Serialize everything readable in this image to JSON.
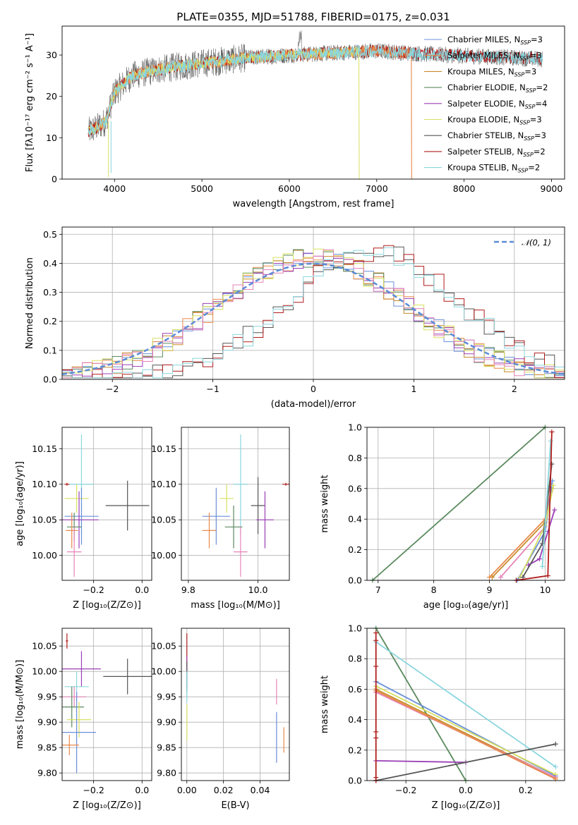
{
  "title": "PLATE=0355, MJD=51788, FIBERID=0175, z=0.031",
  "colors": {
    "chabrier_miles": "#6a8fd8",
    "salpeter_miles": "#e8894a",
    "kroupa_miles": "#c98a2c",
    "chabrier_elodie": "#5a8a5e",
    "salpeter_elodie": "#9b3fb6",
    "kroupa_elodie": "#d8e060",
    "chabrier_stelib": "#555555",
    "salpeter_stelib": "#b01c1c",
    "kroupa_stelib": "#8ad6de",
    "pink": "#e684b8",
    "gauss": "#5b8bd8"
  },
  "chart_data": [
    {
      "type": "line",
      "name": "spectrum",
      "xlabel": "wavelength [Angstrom, rest frame]",
      "ylabel": "Flux [fλ10⁻¹⁷ erg cm⁻² s⁻¹ A⁻¹]",
      "xlim": [
        3400,
        9150
      ],
      "ylim": [
        0,
        37
      ],
      "xticks": [
        "4000",
        "5000",
        "6000",
        "7000",
        "8000",
        "9000"
      ],
      "yticks": [
        "0",
        "10",
        "20",
        "30"
      ],
      "legend_position": "top-right",
      "legend": [
        "Chabrier MILES, NSSP=3",
        "Salpeter MILES, NSSP=3",
        "Kroupa MILES, NSSP=3",
        "Chabrier ELODIE, NSSP=2",
        "Salpeter ELODIE, NSSP=4",
        "Kroupa ELODIE, NSSP=3",
        "Chabrier STELIB, NSSP=3",
        "Salpeter STELIB, NSSP=2",
        "Kroupa STELIB, NSSP=2"
      ],
      "continuum": {
        "x": [
          3700,
          3800,
          3900,
          4000,
          4200,
          4500,
          5000,
          5500,
          6000,
          6500,
          7000,
          7500,
          8000,
          8500,
          8900
        ],
        "y": [
          11.5,
          12.5,
          14,
          21,
          25,
          26.5,
          28,
          29.3,
          30,
          30.5,
          31,
          30.3,
          29.8,
          29.4,
          29
        ]
      },
      "model_end": {
        "miles": 7400,
        "elodie": 6800,
        "stelib": 8900
      }
    },
    {
      "type": "line",
      "name": "residual-histogram",
      "xlabel": "(data-model)/error",
      "ylabel": "Normed distribution",
      "xlim": [
        -2.5,
        2.5
      ],
      "ylim": [
        0,
        0.525
      ],
      "xticks": [
        "−2",
        "−1",
        "0",
        "1",
        "2"
      ],
      "yticks": [
        "0.0",
        "0.1",
        "0.2",
        "0.3",
        "0.4",
        "0.5"
      ],
      "legend": [
        "𝒩(0, 1)"
      ],
      "legend_position": "top-right",
      "bin_width": 0.1,
      "centred_groups": [
        "chabrier_miles",
        "salpeter_miles",
        "kroupa_miles",
        "chabrier_elodie",
        "salpeter_elodie",
        "kroupa_elodie",
        "pink"
      ],
      "shifted_groups": [
        "chabrier_stelib",
        "salpeter_stelib",
        "kroupa_stelib"
      ],
      "centred_peak": 0.45,
      "shifted_center": 0.6,
      "shifted_peak": 0.46
    },
    {
      "type": "scatter",
      "name": "age-vs-Z",
      "xlabel": "Z [log₁₀(Z/Z⊙)]",
      "ylabel": "age  [log₁₀(age/yr)]",
      "xlim": [
        -0.33,
        0.04
      ],
      "ylim": [
        9.965,
        10.18
      ],
      "xticks": [
        "−0.2",
        "0.0"
      ],
      "yticks": [
        "10.00",
        "10.05",
        "10.10",
        "10.15"
      ],
      "points": [
        {
          "c": "kroupa_stelib",
          "x": -0.25,
          "y": 10.1,
          "xe": 0.05,
          "ye": 0.07
        },
        {
          "c": "chabrier_stelib",
          "x": -0.06,
          "y": 10.07,
          "xe": 0.09,
          "ye": 0.035
        },
        {
          "c": "kroupa_elodie",
          "x": -0.27,
          "y": 10.08,
          "xe": 0.05,
          "ye": 0.02
        },
        {
          "c": "chabrier_miles",
          "x": -0.25,
          "y": 10.055,
          "xe": 0.07,
          "ye": 0.04
        },
        {
          "c": "salpeter_elodie",
          "x": -0.26,
          "y": 10.05,
          "xe": 0.08,
          "ye": 0.04
        },
        {
          "c": "chabrier_elodie",
          "x": -0.28,
          "y": 10.04,
          "xe": 0.03,
          "ye": 0.02
        },
        {
          "c": "salpeter_miles",
          "x": -0.29,
          "y": 10.035,
          "xe": 0.025,
          "ye": 0.025
        },
        {
          "c": "pink",
          "x": -0.28,
          "y": 10.005,
          "xe": 0.03,
          "ye": 0.035
        },
        {
          "c": "salpeter_stelib",
          "x": -0.31,
          "y": 10.1,
          "xe": 0.01,
          "ye": 0.002
        }
      ]
    },
    {
      "type": "scatter",
      "name": "age-vs-mass",
      "xlabel": "mass [log₁₀(M/M⊙)]",
      "ylabel": "",
      "xlim": [
        9.78,
        10.09
      ],
      "ylim": [
        9.965,
        10.18
      ],
      "xticks": [
        "9.8",
        "10.0"
      ],
      "yticks": [
        "10.00",
        "10.05",
        "10.10",
        "10.15"
      ],
      "points": [
        {
          "c": "kroupa_stelib",
          "x": 9.95,
          "y": 10.1,
          "xe": 0.02,
          "ye": 0.07
        },
        {
          "c": "chabrier_stelib",
          "x": 10.0,
          "y": 10.07,
          "xe": 0.02,
          "ye": 0.04
        },
        {
          "c": "kroupa_elodie",
          "x": 9.91,
          "y": 10.08,
          "xe": 0.02,
          "ye": 0.02
        },
        {
          "c": "chabrier_miles",
          "x": 9.88,
          "y": 10.055,
          "xe": 0.04,
          "ye": 0.04
        },
        {
          "c": "chabrier_elodie",
          "x": 9.93,
          "y": 10.04,
          "xe": 0.025,
          "ye": 0.03
        },
        {
          "c": "salpeter_elodie",
          "x": 10.02,
          "y": 10.05,
          "xe": 0.025,
          "ye": 0.04
        },
        {
          "c": "salpeter_miles",
          "x": 9.86,
          "y": 10.035,
          "xe": 0.02,
          "ye": 0.025
        },
        {
          "c": "pink",
          "x": 9.95,
          "y": 10.005,
          "xe": 0.02,
          "ye": 0.035
        },
        {
          "c": "salpeter_stelib",
          "x": 10.08,
          "y": 10.1,
          "xe": 0.01,
          "ye": 0.002
        }
      ]
    },
    {
      "type": "line",
      "name": "mass-weight-vs-age",
      "xlabel": "age  [log₁₀(age/yr)]",
      "ylabel": "mass weight",
      "xlim": [
        6.8,
        10.35
      ],
      "ylim": [
        0,
        1
      ],
      "xticks": [
        "7",
        "8",
        "9",
        "10"
      ],
      "yticks": [
        "0.0",
        "0.2",
        "0.4",
        "0.6",
        "0.8",
        "1.0"
      ],
      "series": [
        {
          "c": "chabrier_elodie",
          "x": [
            6.9,
            10.0
          ],
          "y": [
            0.0,
            1.0
          ]
        },
        {
          "c": "salpeter_miles",
          "x": [
            9.0,
            10.0,
            10.1
          ],
          "y": [
            0.02,
            0.4,
            0.58
          ]
        },
        {
          "c": "kroupa_miles",
          "x": [
            9.05,
            10.0,
            10.12
          ],
          "y": [
            0.02,
            0.38,
            0.6
          ]
        },
        {
          "c": "pink",
          "x": [
            9.2,
            10.0,
            10.1
          ],
          "y": [
            0.02,
            0.35,
            0.58
          ]
        },
        {
          "c": "chabrier_miles",
          "x": [
            9.5,
            10.0,
            10.13
          ],
          "y": [
            0.0,
            0.32,
            0.65
          ]
        },
        {
          "c": "kroupa_elodie",
          "x": [
            9.55,
            10.0,
            10.15
          ],
          "y": [
            0.02,
            0.36,
            0.62
          ]
        },
        {
          "c": "salpeter_elodie",
          "x": [
            9.7,
            9.9,
            10.17
          ],
          "y": [
            0.1,
            0.14,
            0.46
          ]
        },
        {
          "c": "chabrier_stelib",
          "x": [
            9.6,
            9.95,
            10.12
          ],
          "y": [
            0.02,
            0.24,
            0.76
          ]
        },
        {
          "c": "kroupa_stelib",
          "x": [
            9.95,
            10.1
          ],
          "y": [
            0.09,
            0.91
          ]
        },
        {
          "c": "salpeter_stelib",
          "x": [
            9.48,
            10.05,
            10.12
          ],
          "y": [
            0.0,
            0.03,
            0.97
          ]
        }
      ]
    },
    {
      "type": "scatter",
      "name": "mass-vs-Z",
      "xlabel": "Z [log₁₀(Z/Z⊙)]",
      "ylabel": "mass [log₁₀(M/M⊙)]",
      "xlim": [
        -0.33,
        0.04
      ],
      "ylim": [
        9.785,
        10.085
      ],
      "xticks": [
        "−0.2",
        "0.0"
      ],
      "yticks": [
        "9.80",
        "9.85",
        "9.90",
        "9.95",
        "10.00",
        "10.05"
      ],
      "points": [
        {
          "c": "salpeter_stelib",
          "x": -0.31,
          "y": 10.06,
          "xe": 0.005,
          "ye": 0.015
        },
        {
          "c": "salpeter_elodie",
          "x": -0.25,
          "y": 10.005,
          "xe": 0.08,
          "ye": 0.035
        },
        {
          "c": "chabrier_stelib",
          "x": -0.06,
          "y": 9.99,
          "xe": 0.1,
          "ye": 0.035
        },
        {
          "c": "kroupa_stelib",
          "x": -0.27,
          "y": 9.97,
          "xe": 0.05,
          "ye": 0.03
        },
        {
          "c": "pink",
          "x": -0.28,
          "y": 9.95,
          "xe": 0.05,
          "ye": 0.02
        },
        {
          "c": "chabrier_elodie",
          "x": -0.29,
          "y": 9.93,
          "xe": 0.05,
          "ye": 0.04
        },
        {
          "c": "kroupa_elodie",
          "x": -0.26,
          "y": 9.905,
          "xe": 0.05,
          "ye": 0.035
        },
        {
          "c": "chabrier_miles",
          "x": -0.27,
          "y": 9.88,
          "xe": 0.08,
          "ye": 0.08
        },
        {
          "c": "salpeter_miles",
          "x": -0.3,
          "y": 9.855,
          "xe": 0.04,
          "ye": 0.02
        }
      ]
    },
    {
      "type": "scatter",
      "name": "mass-vs-EBV",
      "xlabel": "E(B-V)",
      "ylabel": "",
      "xlim": [
        -0.003,
        0.056
      ],
      "ylim": [
        9.785,
        10.085
      ],
      "xticks": [
        "0.00",
        "0.02",
        "0.04"
      ],
      "yticks": [
        "9.80",
        "9.85",
        "9.90",
        "9.95",
        "10.00",
        "10.05"
      ],
      "points": [
        {
          "c": "salpeter_stelib",
          "x": 0.0,
          "y": 10.04,
          "xe": 0.0,
          "ye": 0.035
        },
        {
          "c": "salpeter_elodie",
          "x": 0.0,
          "y": 10.0,
          "xe": 0.0,
          "ye": 0.03
        },
        {
          "c": "chabrier_stelib",
          "x": 0.0,
          "y": 9.99,
          "xe": 0.0,
          "ye": 0.03
        },
        {
          "c": "kroupa_stelib",
          "x": 0.0,
          "y": 9.97,
          "xe": 0.0,
          "ye": 0.03
        },
        {
          "c": "kroupa_elodie",
          "x": 0.0,
          "y": 9.9,
          "xe": 0.0,
          "ye": 0.035
        },
        {
          "c": "pink",
          "x": 0.049,
          "y": 9.96,
          "xe": 0.0,
          "ye": 0.025
        },
        {
          "c": "chabrier_miles",
          "x": 0.049,
          "y": 9.87,
          "xe": 0.0,
          "ye": 0.05
        },
        {
          "c": "salpeter_miles",
          "x": 0.053,
          "y": 9.865,
          "xe": 0.0,
          "ye": 0.025
        }
      ]
    },
    {
      "type": "line",
      "name": "mass-weight-vs-Z",
      "xlabel": "Z [log₁₀(Z/Z⊙)]",
      "ylabel": "mass weight",
      "xlim": [
        -0.33,
        0.33
      ],
      "ylim": [
        0,
        1
      ],
      "xticks": [
        "−0.2",
        "0.0",
        "0.2"
      ],
      "yticks": [
        "0.0",
        "0.2",
        "0.4",
        "0.6",
        "0.8",
        "1.0"
      ],
      "series": [
        {
          "c": "chabrier_elodie",
          "x": [
            -0.3,
            0.0
          ],
          "y": [
            1.0,
            0.0
          ]
        },
        {
          "c": "kroupa_stelib",
          "x": [
            -0.3,
            0.3
          ],
          "y": [
            0.91,
            0.09
          ]
        },
        {
          "c": "chabrier_miles",
          "x": [
            -0.3,
            0.3
          ],
          "y": [
            0.65,
            0.03
          ]
        },
        {
          "c": "kroupa_elodie",
          "x": [
            -0.3,
            0.3
          ],
          "y": [
            0.62,
            0.04
          ]
        },
        {
          "c": "kroupa_miles",
          "x": [
            -0.3,
            0.3
          ],
          "y": [
            0.6,
            0.02
          ]
        },
        {
          "c": "pink",
          "x": [
            -0.3,
            0.3
          ],
          "y": [
            0.58,
            0.02
          ]
        },
        {
          "c": "salpeter_miles",
          "x": [
            -0.3,
            0.3
          ],
          "y": [
            0.59,
            0.01
          ]
        },
        {
          "c": "salpeter_elodie",
          "x": [
            -0.3,
            0.0
          ],
          "y": [
            0.13,
            0.12
          ]
        },
        {
          "c": "chabrier_stelib",
          "x": [
            -0.3,
            0.3
          ],
          "y": [
            0.0,
            0.24
          ]
        },
        {
          "c": "salpeter_stelib",
          "x": [
            -0.3,
            -0.3
          ],
          "y": [
            0.0,
            0.97
          ]
        }
      ]
    }
  ]
}
